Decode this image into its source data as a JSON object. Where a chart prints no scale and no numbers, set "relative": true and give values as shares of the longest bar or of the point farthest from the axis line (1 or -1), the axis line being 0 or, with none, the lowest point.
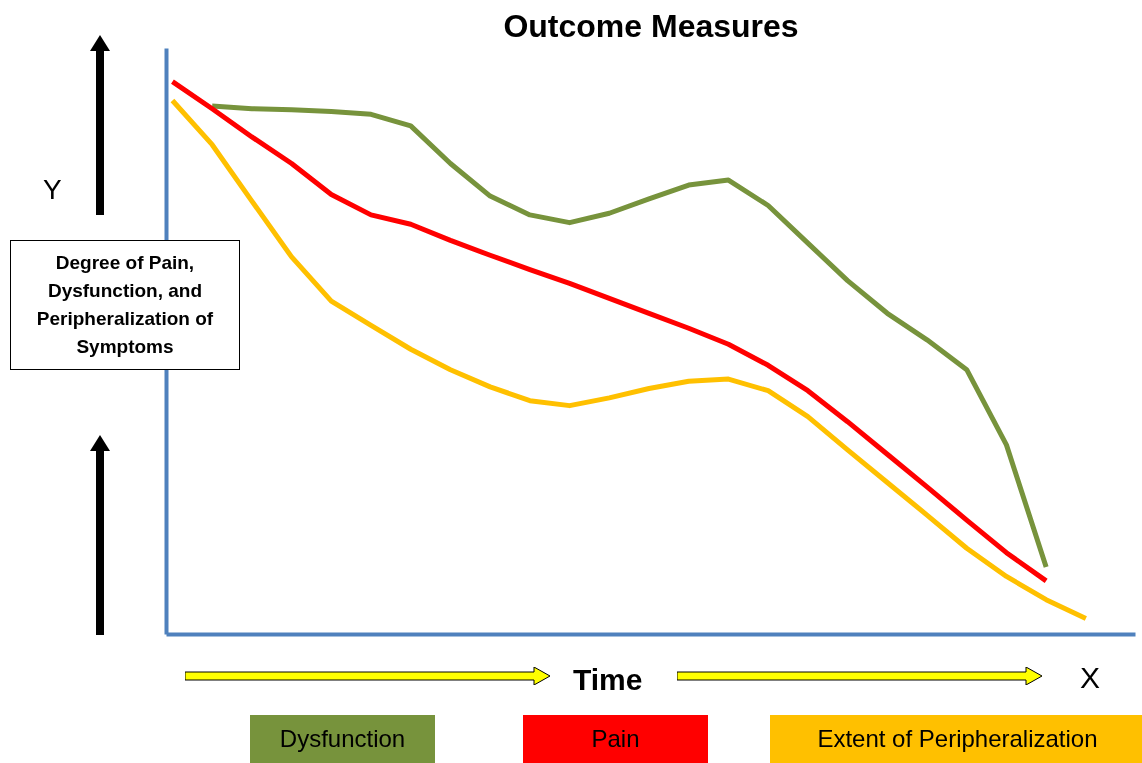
{
  "chart_data": {
    "type": "line",
    "title": "Outcome Measures",
    "xlabel": "Time",
    "ylabel": "Degree of Pain, Dysfunction, and Peripheralization of Symptoms",
    "annotations": [
      "Y",
      "X"
    ],
    "relative": true,
    "grid": false,
    "legend": "bottom",
    "marker": "none",
    "line_style": "solid",
    "tick_labels": false,
    "categories": [
      null,
      null,
      null,
      null,
      null,
      null,
      null,
      null,
      null,
      null,
      null,
      null,
      null,
      null,
      null,
      null,
      null,
      null,
      null,
      null,
      null,
      null,
      null,
      null
    ],
    "series": [
      {
        "name": "Dysfunction",
        "color": "#77933c",
        "values": [
          null,
          0.956,
          0.951,
          0.949,
          0.946,
          0.941,
          0.92,
          0.852,
          0.793,
          0.759,
          0.745,
          0.762,
          0.788,
          0.813,
          0.822,
          0.776,
          0.708,
          0.64,
          0.581,
          0.533,
          0.479,
          0.343,
          0.122,
          null
        ]
      },
      {
        "name": "Pain",
        "color": "#ff0000",
        "values": [
          1.0,
          0.951,
          0.9,
          0.852,
          0.796,
          0.759,
          0.742,
          0.713,
          0.686,
          0.66,
          0.635,
          0.608,
          0.581,
          0.554,
          0.525,
          0.487,
          0.441,
          0.385,
          0.326,
          0.267,
          0.207,
          0.148,
          0.097,
          null
        ]
      },
      {
        "name": "Extent of Peripheralization",
        "color": "#ffc000",
        "values": [
          0.966,
          0.886,
          0.784,
          0.683,
          0.603,
          0.559,
          0.516,
          0.479,
          0.448,
          0.423,
          0.414,
          0.428,
          0.445,
          0.458,
          0.462,
          0.441,
          0.394,
          0.334,
          0.275,
          0.216,
          0.156,
          0.105,
          0.063,
          0.029
        ]
      }
    ]
  }
}
